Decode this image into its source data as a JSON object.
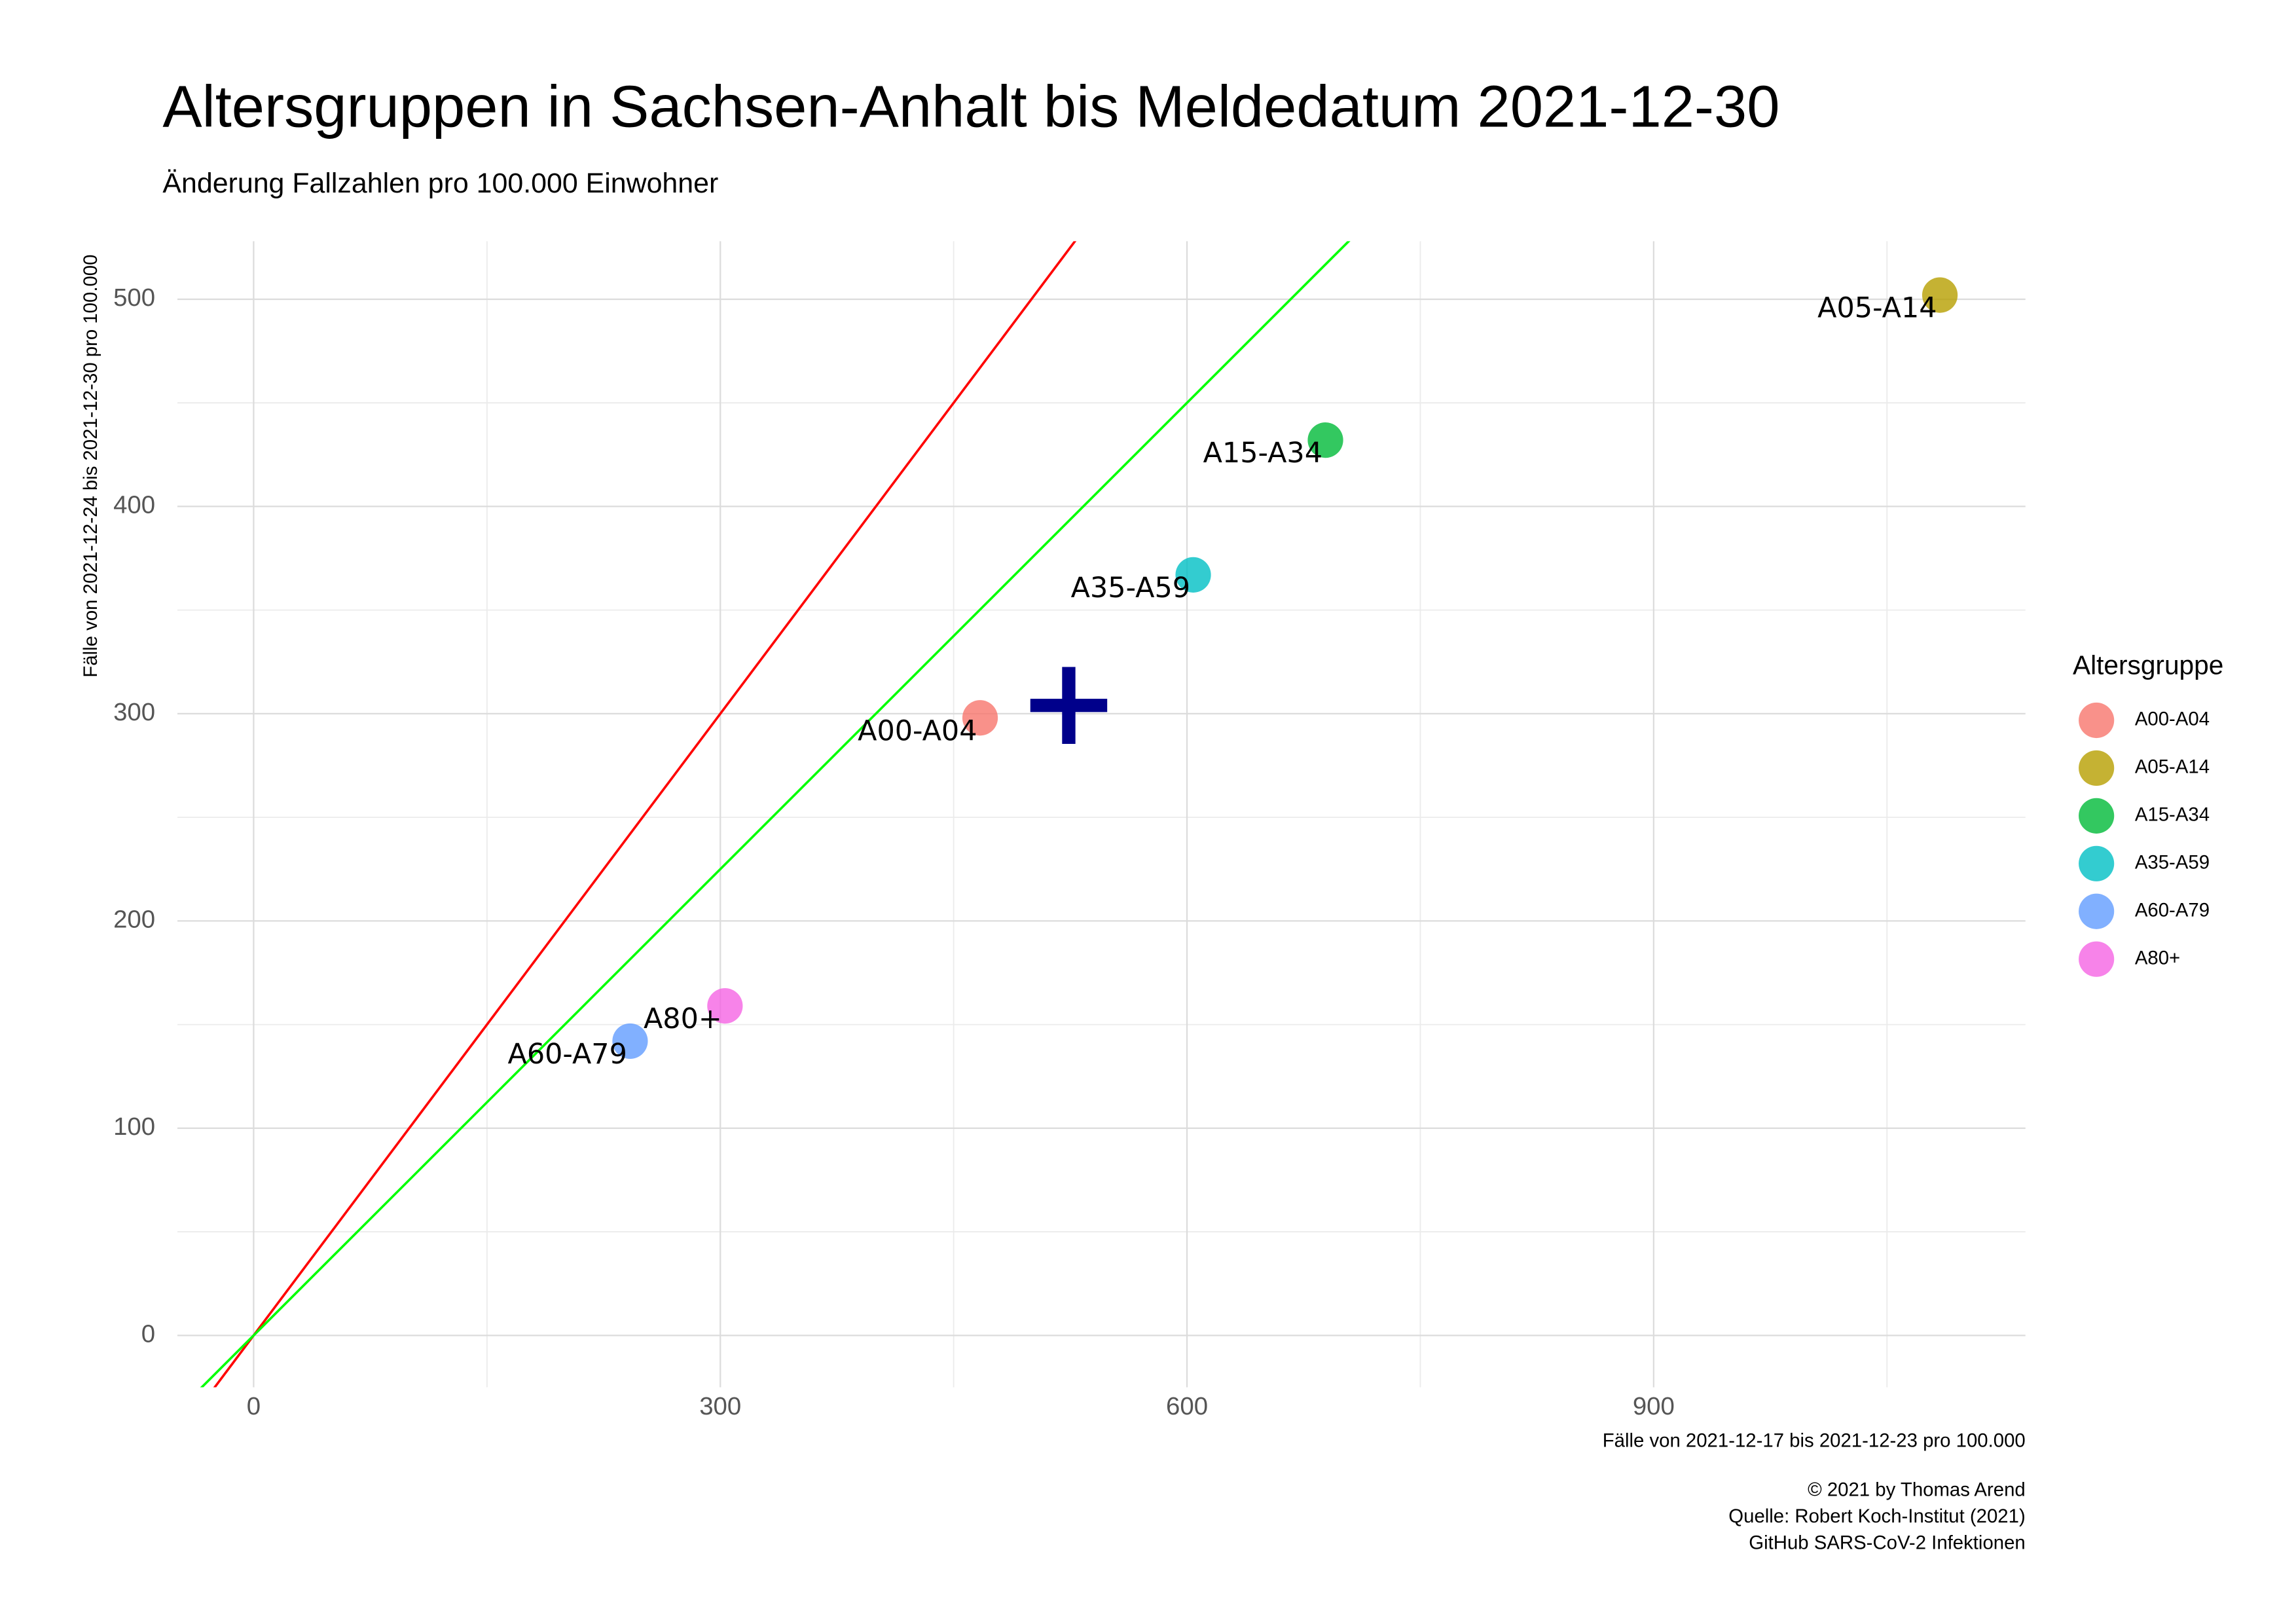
{
  "chart_data": {
    "type": "scatter",
    "title": "Altersgruppen in Sachsen-Anhalt bis Meldedatum 2021-12-30",
    "subtitle": "Änderung Fallzahlen pro 100.000 Einwohner",
    "xlabel": "Fälle von 2021-12-17 bis 2021-12-23 pro 100.000",
    "ylabel": "Fälle von 2021-12-24 bis 2021-12-30 pro 100.000",
    "caption": [
      "© 2021 by Thomas Arend",
      "Quelle: Robert Koch-Institut (2021)",
      "GitHub SARS-CoV-2 Infektionen"
    ],
    "legend_title": "Altersgruppe",
    "legend_position": "right",
    "grid": true,
    "xlim": [
      -49,
      1139
    ],
    "ylim": [
      -25,
      528
    ],
    "xticks": [
      0,
      300,
      600,
      900
    ],
    "yticks": [
      0,
      100,
      200,
      300,
      400,
      500
    ],
    "xminorticks": [
      150,
      450,
      750,
      1050
    ],
    "yminorticks": [
      50,
      150,
      250,
      350,
      450
    ],
    "reference_lines": [
      {
        "slope": 1,
        "color": "#ff0000"
      },
      {
        "slope": 0.75,
        "color": "#00ff00"
      }
    ],
    "center": {
      "x": 524,
      "y": 304,
      "color": "#00008b"
    },
    "series": [
      {
        "name": "A00-A04",
        "color": "#F8766D",
        "x": [
          467
        ],
        "values": [
          298
        ]
      },
      {
        "name": "A05-A14",
        "color": "#B79F00",
        "x": [
          1084
        ],
        "values": [
          502
        ]
      },
      {
        "name": "A15-A34",
        "color": "#00BA38",
        "x": [
          689
        ],
        "values": [
          432
        ]
      },
      {
        "name": "A35-A59",
        "color": "#00BFC4",
        "x": [
          604
        ],
        "values": [
          367
        ]
      },
      {
        "name": "A60-A79",
        "color": "#619CFF",
        "x": [
          242
        ],
        "values": [
          142
        ]
      },
      {
        "name": "A80+",
        "color": "#F564E3",
        "x": [
          303
        ],
        "values": [
          159
        ]
      }
    ]
  }
}
